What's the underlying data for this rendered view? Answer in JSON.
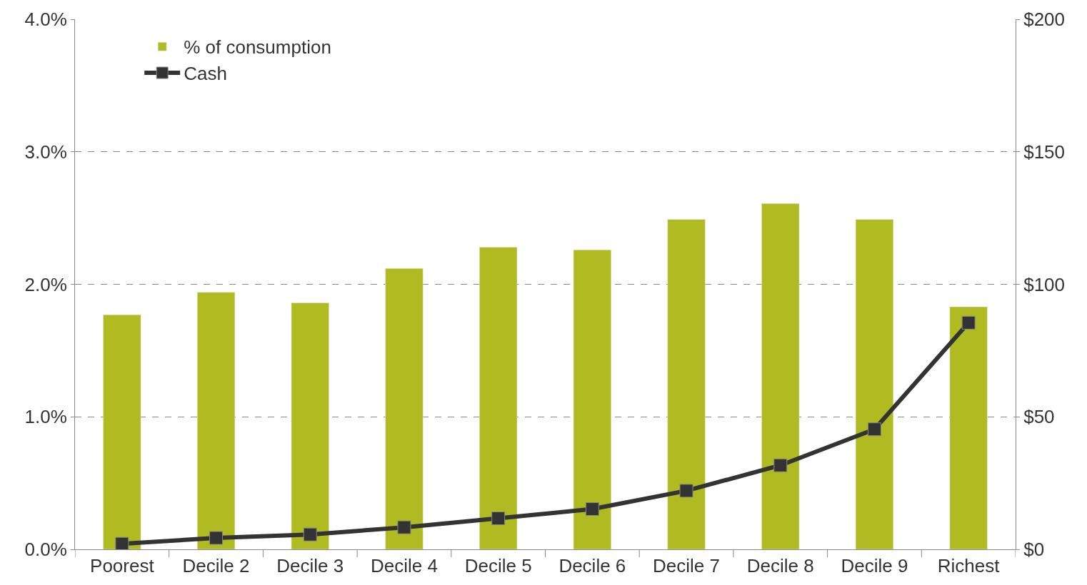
{
  "chart_data": {
    "type": "bar",
    "categories": [
      "Poorest",
      "Decile 2",
      "Decile 3",
      "Decile 4",
      "Decile 5",
      "Decile 6",
      "Decile 7",
      "Decile 8",
      "Decile 9",
      "Richest"
    ],
    "series": [
      {
        "name": "% of consumption",
        "color": "#afbb21",
        "values": [
          1.77,
          1.94,
          1.86,
          2.12,
          2.28,
          2.26,
          2.49,
          2.61,
          2.49,
          1.83
        ]
      },
      {
        "name": "Cash",
        "type": "line",
        "axis": "y2",
        "color": "#333333",
        "marker": "square",
        "line_style": "solid",
        "values": [
          2.1,
          4.3,
          5.6,
          8.3,
          11.7,
          15.2,
          22.1,
          31.7,
          45.3,
          85.5
        ]
      }
    ],
    "ylim": [
      0,
      4
    ],
    "yticks": [
      {
        "value": 0,
        "label": "0.0%"
      },
      {
        "value": 1,
        "label": "1.0%"
      },
      {
        "value": 2,
        "label": "2.0%"
      },
      {
        "value": 3,
        "label": "3.0%"
      },
      {
        "value": 4,
        "label": "4.0%"
      }
    ],
    "y2lim": [
      0,
      200
    ],
    "y2ticks": [
      {
        "value": 0,
        "label": "$0"
      },
      {
        "value": 50,
        "label": "$50"
      },
      {
        "value": 100,
        "label": "$100"
      },
      {
        "value": 150,
        "label": "$150"
      },
      {
        "value": 200,
        "label": "$200"
      }
    ],
    "grid": "y",
    "legend": "top left"
  }
}
